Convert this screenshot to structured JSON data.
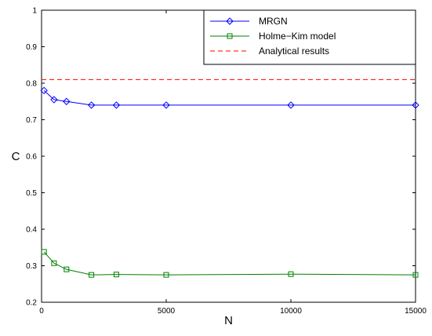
{
  "chart_data": {
    "type": "line",
    "title": "",
    "xlabel": "N",
    "ylabel": "C",
    "xlim": [
      0,
      15000
    ],
    "ylim": [
      0.2,
      1
    ],
    "xticks": [
      0,
      5000,
      10000,
      15000
    ],
    "xtick_labels": [
      "0",
      "5000",
      "10000",
      "15000"
    ],
    "yticks": [
      0.2,
      0.3,
      0.4,
      0.5,
      0.6,
      0.7,
      0.8,
      0.9,
      1
    ],
    "ytick_labels": [
      "0.2",
      "0.3",
      "0.4",
      "0.5",
      "0.6",
      "0.7",
      "0.8",
      "0.9",
      "1"
    ],
    "grid": false,
    "legend_position": "top-right",
    "series": [
      {
        "name": "MRGN",
        "color": "#0000ff",
        "marker": "diamond",
        "line_style": "solid",
        "x": [
          100,
          500,
          1000,
          2000,
          3000,
          5000,
          10000,
          15000
        ],
        "y": [
          0.78,
          0.755,
          0.75,
          0.74,
          0.74,
          0.74,
          0.74,
          0.74
        ]
      },
      {
        "name": "Holme−Kim model",
        "color": "#008000",
        "marker": "square",
        "line_style": "solid",
        "x": [
          100,
          500,
          1000,
          2000,
          3000,
          5000,
          10000,
          15000
        ],
        "y": [
          0.338,
          0.307,
          0.29,
          0.275,
          0.276,
          0.275,
          0.277,
          0.275
        ]
      },
      {
        "name": "Analytical results",
        "color": "#ff0000",
        "marker": "none",
        "line_style": "dashed",
        "x": [
          0,
          15000
        ],
        "y": [
          0.81,
          0.81
        ]
      }
    ]
  }
}
